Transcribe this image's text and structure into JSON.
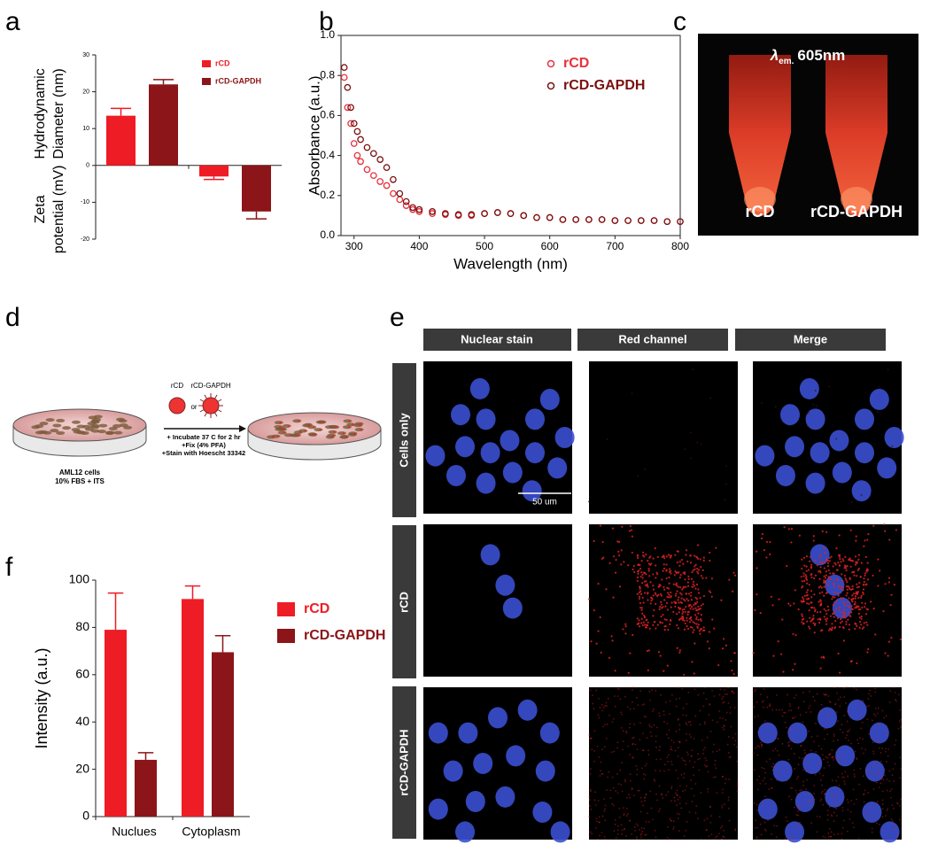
{
  "panel_labels": [
    "a",
    "b",
    "c",
    "d",
    "e",
    "f"
  ],
  "chart_data": [
    {
      "type": "bar",
      "ylabel_top": [
        "Hydrodynamic",
        "Diameter (nm)"
      ],
      "ylabel_bottom": [
        "Zeta",
        "potential (mV)"
      ],
      "categories": [
        null,
        null
      ],
      "series": [
        {
          "name": "rCD",
          "color": "#ee1c25",
          "values": [
            13.5,
            -3
          ],
          "errors": [
            2,
            0.8
          ]
        },
        {
          "name": "rCD-GAPDH",
          "color": "#8b1518",
          "values": [
            22,
            -12.5
          ],
          "errors": [
            1.3,
            2
          ]
        }
      ],
      "ylim": [
        -20,
        30
      ],
      "yticks": [
        -20,
        -10,
        0,
        10,
        20,
        30
      ],
      "legend": "upper right"
    },
    {
      "type": "scatter",
      "xlabel": "Wavelength (nm)",
      "ylabel": "Absorbance (a.u.)",
      "x": [
        285,
        290,
        295,
        300,
        305,
        310,
        320,
        330,
        340,
        350,
        360,
        370,
        380,
        390,
        400,
        420,
        440,
        460,
        480,
        500,
        520,
        540,
        560,
        580,
        600,
        620,
        640,
        660,
        680,
        700,
        720,
        740,
        760,
        780,
        800
      ],
      "series": [
        {
          "name": "rCD",
          "color": "#e8303a",
          "values": [
            0.79,
            0.64,
            0.56,
            0.46,
            0.4,
            0.37,
            0.33,
            0.3,
            0.27,
            0.25,
            0.21,
            0.18,
            0.15,
            0.13,
            0.12,
            0.11,
            0.105,
            0.1,
            0.1,
            0.11,
            0.115,
            0.11,
            0.1,
            0.09,
            0.09,
            0.08,
            0.08,
            0.08,
            0.08,
            0.075,
            0.075,
            0.075,
            0.075,
            0.07,
            0.07
          ]
        },
        {
          "name": "rCD-GAPDH",
          "color": "#7a1010",
          "values": [
            0.84,
            0.74,
            0.64,
            0.56,
            0.52,
            0.48,
            0.44,
            0.41,
            0.38,
            0.34,
            0.28,
            0.21,
            0.17,
            0.14,
            0.13,
            0.12,
            0.11,
            0.105,
            0.105,
            0.11,
            0.115,
            0.11,
            0.1,
            0.09,
            0.09,
            0.08,
            0.08,
            0.08,
            0.08,
            0.075,
            0.075,
            0.075,
            0.075,
            0.07,
            0.07
          ]
        }
      ],
      "xlim": [
        280,
        800
      ],
      "ylim": [
        0,
        1
      ],
      "xticks": [
        300,
        400,
        500,
        600,
        700,
        800
      ],
      "yticks": [
        {
          "value": 0,
          "label": "0.0"
        },
        0.2,
        0.4,
        0.6,
        0.8,
        {
          "value": 1,
          "label": "1.0"
        }
      ],
      "legend": "upper right"
    },
    {
      "type": "bar",
      "ylabel": "Intensity (a.u.)",
      "categories": [
        "Nuclues",
        "Cytoplasm"
      ],
      "series": [
        {
          "name": "rCD",
          "color": "#ee1c25",
          "values": [
            79,
            92
          ],
          "errors": [
            15.5,
            5.5
          ]
        },
        {
          "name": "rCD-GAPDH",
          "color": "#8b1518",
          "values": [
            24,
            69.5
          ],
          "errors": [
            3,
            7
          ]
        }
      ],
      "ylim": [
        0,
        100
      ],
      "yticks": [
        0,
        20,
        40,
        60,
        80,
        100
      ],
      "legend": "outside right"
    }
  ],
  "photo_c": {
    "label_symbol": "λ",
    "label_subscript": "em.",
    "label_value": "605nm",
    "tubes": [
      "rCD",
      "rCD-GAPDH"
    ]
  },
  "schematic_d": {
    "particles": [
      "rCD",
      "rCD-GAPDH"
    ],
    "connector": "or",
    "steps": [
      "+ Incubate 37 C for 2 hr",
      "+Fix (4% PFA)",
      "+Stain with Hoescht 33342"
    ],
    "cells": [
      "AML12 cells",
      "10% FBS + ITS"
    ]
  },
  "microscopy_e": {
    "columns": [
      "Nuclear stain",
      "Red channel",
      "Merge"
    ],
    "rows": [
      "Cells only",
      "rCD",
      "rCD-GAPDH"
    ],
    "scale_bar": "50 um"
  }
}
